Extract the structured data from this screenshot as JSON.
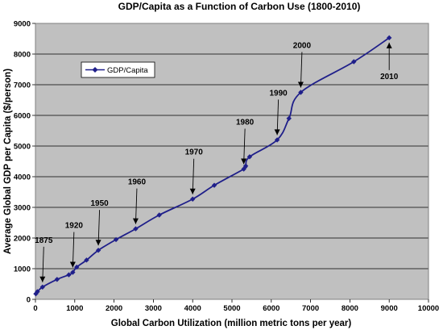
{
  "chart_data": {
    "type": "line",
    "title": "GDP/Capita as a Function of Carbon Use (1800-2010)",
    "xlabel": "Global Carbon Utilization (million metric tons per year)",
    "ylabel": "Average Global GDP per Capita ($/person)",
    "xlim": [
      0,
      10000
    ],
    "ylim": [
      0,
      9000
    ],
    "xticks": [
      0,
      1000,
      2000,
      3000,
      4000,
      5000,
      6000,
      7000,
      8000,
      9000,
      10000
    ],
    "yticks": [
      0,
      1000,
      2000,
      3000,
      4000,
      5000,
      6000,
      7000,
      8000,
      9000
    ],
    "grid": "horizontal",
    "legend_position": "top-left",
    "plot_background": "#c0c0c0",
    "series": [
      {
        "name": "GDP/Capita",
        "color": "#1f1f8a",
        "marker": "diamond",
        "x": [
          10,
          50,
          180,
          550,
          850,
          950,
          1050,
          1300,
          1600,
          2050,
          2550,
          3150,
          4000,
          4550,
          5300,
          5350,
          5450,
          6150,
          6450,
          6750,
          8100,
          9000
        ],
        "y": [
          180,
          250,
          400,
          650,
          800,
          880,
          1050,
          1280,
          1600,
          1950,
          2300,
          2750,
          3270,
          3720,
          4250,
          4350,
          4650,
          5200,
          5900,
          6750,
          7750,
          8530
        ]
      }
    ],
    "annotations": [
      {
        "text": "1875",
        "x": 180,
        "y": 400
      },
      {
        "text": "1920",
        "x": 950,
        "y": 880
      },
      {
        "text": "1950",
        "x": 1600,
        "y": 1600
      },
      {
        "text": "1960",
        "x": 2550,
        "y": 2300
      },
      {
        "text": "1970",
        "x": 4000,
        "y": 3270
      },
      {
        "text": "1980",
        "x": 5300,
        "y": 4250
      },
      {
        "text": "1990",
        "x": 6150,
        "y": 5200
      },
      {
        "text": "2000",
        "x": 6750,
        "y": 6750
      },
      {
        "text": "2010",
        "x": 9000,
        "y": 8530
      }
    ]
  }
}
